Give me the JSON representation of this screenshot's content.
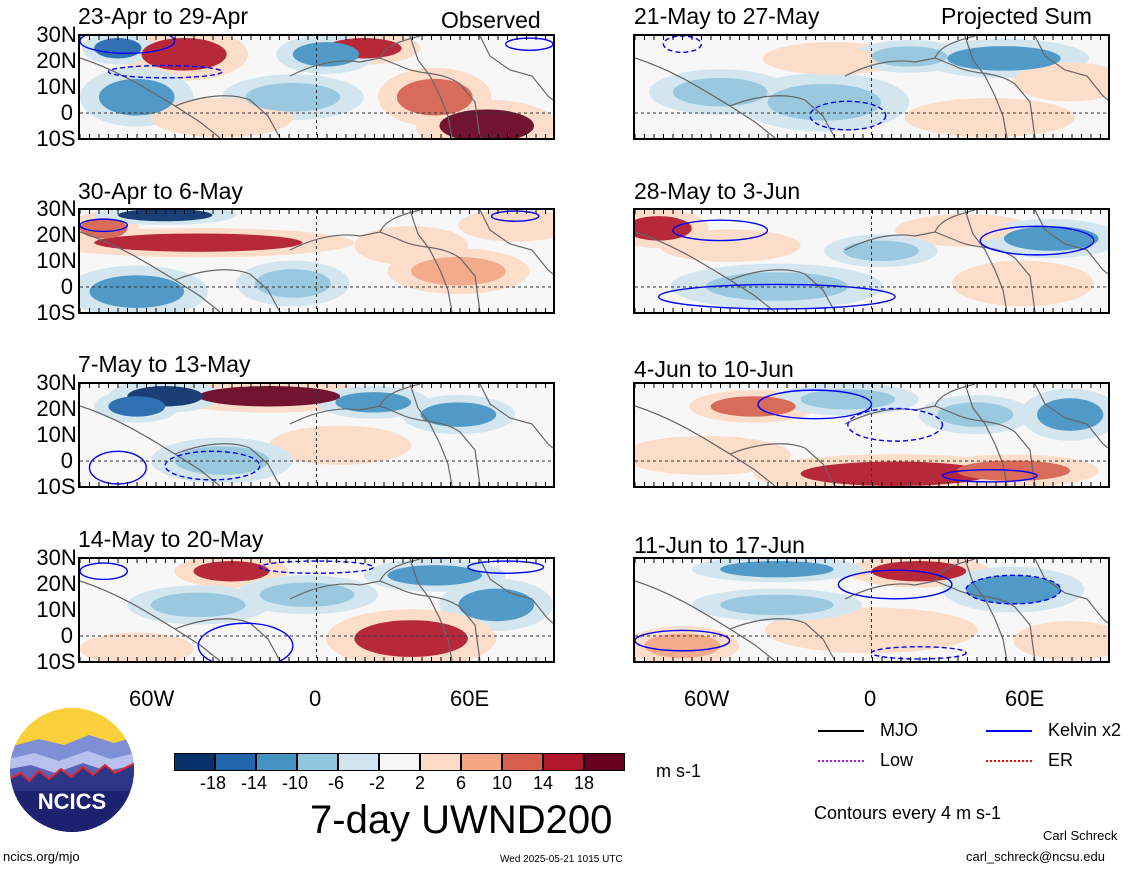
{
  "figure": {
    "title": "7-day UWND200",
    "units": "m s-1",
    "contour_note": "Contours every 4 m s-1",
    "left_column_label": "Observed",
    "right_column_label": "Projected Sum",
    "site": "ncics.org/mjo",
    "timestamp": "Wed 2025-05-21 1015 UTC",
    "author": "Carl Schreck",
    "email": "carl_schreck@ncsu.edu",
    "logo_text": "NCICS"
  },
  "axes": {
    "lat_labels": [
      "30N",
      "20N",
      "10N",
      "0",
      "10S"
    ],
    "lon_labels": [
      "60W",
      "0",
      "60E"
    ],
    "lat_range": [
      -10,
      30
    ],
    "lon_range": [
      -100,
      100
    ]
  },
  "colorbar": {
    "labels": [
      "-18",
      "-14",
      "-10",
      "-6",
      "-2",
      "2",
      "6",
      "10",
      "14",
      "18"
    ],
    "colors": [
      "#08306b",
      "#2166ac",
      "#4393c3",
      "#92c5de",
      "#d1e5f0",
      "#f7f7f7",
      "#fddbc7",
      "#f4a582",
      "#d6604d",
      "#b2182b",
      "#67001f"
    ]
  },
  "legend": [
    {
      "label": "MJO",
      "color": "#000000"
    },
    {
      "label": "Kelvin x2",
      "color": "#0000ff"
    },
    {
      "label": "Low",
      "color": "#a020f0"
    },
    {
      "label": "ER",
      "color": "#ff0000"
    }
  ],
  "panels": [
    {
      "title": "23-Apr to 29-Apr",
      "column": "observed",
      "row": 0
    },
    {
      "title": "30-Apr to 6-May",
      "column": "observed",
      "row": 1
    },
    {
      "title": "7-May to 13-May",
      "column": "observed",
      "row": 2
    },
    {
      "title": "14-May to 20-May",
      "column": "observed",
      "row": 3
    },
    {
      "title": "21-May to 27-May",
      "column": "projected",
      "row": 0
    },
    {
      "title": "28-May to 3-Jun",
      "column": "projected",
      "row": 1
    },
    {
      "title": "4-Jun to 10-Jun",
      "column": "projected",
      "row": 2
    },
    {
      "title": "11-Jun to 17-Jun",
      "column": "projected",
      "row": 3
    }
  ]
}
